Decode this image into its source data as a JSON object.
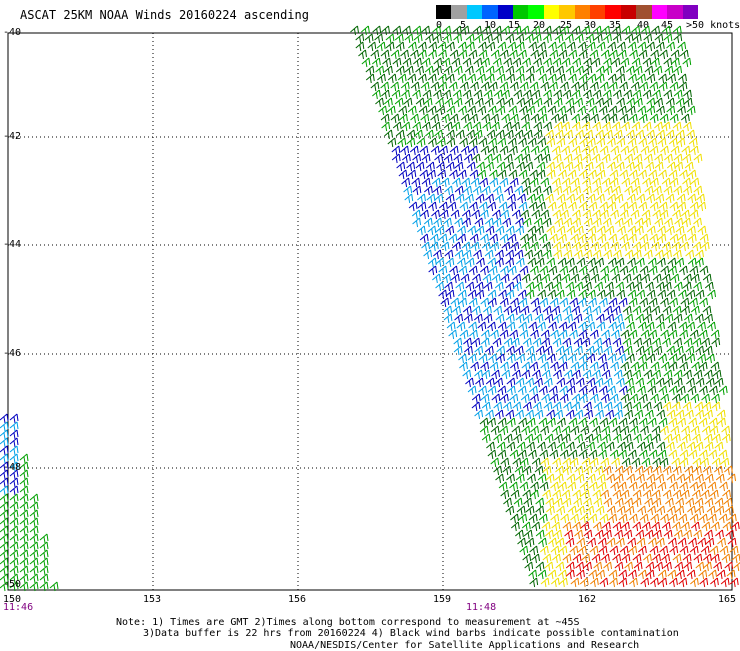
{
  "title": "ASCAT 25KM NOAA Winds 20160224 ascending",
  "wind_scale": {
    "labels": [
      "0",
      "5",
      "10",
      "15",
      "20",
      "25",
      "30",
      "35",
      "40",
      "45",
      ">50 knots"
    ],
    "colors": [
      "#000000",
      "#a0a0a0",
      "#00c8ff",
      "#0064ff",
      "#0000c8",
      "#00c800",
      "#00ff00",
      "#ffff00",
      "#ffc800",
      "#ff8000",
      "#ff4000",
      "#ff0000",
      "#c80000",
      "#a05030",
      "#ff00ff",
      "#c800c8",
      "#8000c0"
    ]
  },
  "axes": {
    "x_ticks": [
      "150",
      "153",
      "156",
      "159",
      "162",
      "165"
    ],
    "y_ticks": [
      "-40",
      "-42",
      "-44",
      "-46",
      "-48",
      "-50"
    ]
  },
  "times": [
    "11:46",
    "11:48"
  ],
  "notes": {
    "line1": "Note: 1) Times are GMT 2)Times along bottom correspond to measurement at ~45S",
    "line2": "3)Data buffer is 22 hrs from 20160224 4) Black wind barbs indicate possible contamination",
    "line3": "NOAA/NESDIS/Center for Satellite Applications and Research"
  },
  "colors": {
    "green_barb": "#00a000",
    "dark_green_barb": "#006400",
    "light_blue_barb": "#00a0e8",
    "blue_barb": "#0000c0",
    "yellow_barb": "#f0e000",
    "orange_barb": "#f08000",
    "red_barb": "#e00000",
    "grid": "#000000"
  }
}
